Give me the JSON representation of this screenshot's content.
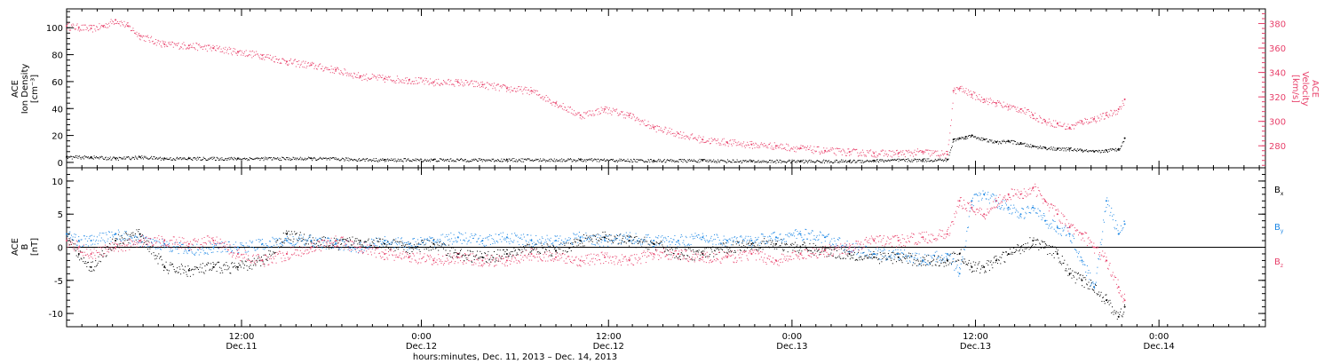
{
  "colors": {
    "black": "#000000",
    "pink": "#e8416b",
    "blue": "#1e88e5"
  },
  "chart_data": [
    {
      "type": "scatter",
      "panel": "top",
      "ylabel_left": [
        "ACE",
        "Ion Density",
        "[cm⁻³]"
      ],
      "ylabel_right": [
        "ACE",
        "Velocity",
        "[km/s]"
      ],
      "ylim_left": [
        -4,
        114
      ],
      "ylim_right": [
        262,
        392
      ],
      "yticks_left": [
        "0",
        "20",
        "40",
        "60",
        "80",
        "100"
      ],
      "yticks_left_values": [
        0,
        20,
        40,
        60,
        80,
        100
      ],
      "yticks_right": [
        "280",
        "300",
        "320",
        "340",
        "360",
        "380"
      ],
      "yticks_right_values": [
        280,
        300,
        320,
        340,
        360,
        380
      ],
      "series": [
        {
          "axis": "left",
          "color": "#000000",
          "x": [
            0,
            2,
            4,
            6,
            8,
            10,
            14,
            20,
            26,
            30,
            36,
            42,
            48,
            52,
            56,
            60,
            64,
            66,
            70,
            72,
            72.5,
            73,
            73.5,
            74,
            75,
            76,
            77,
            78,
            79,
            80,
            81,
            82,
            83,
            84,
            85,
            86,
            86.5
          ],
          "y": [
            4,
            4,
            3,
            4,
            3,
            3,
            3,
            3,
            2,
            2,
            2,
            2,
            1.5,
            1.5,
            1,
            1,
            1,
            1.5,
            2,
            2,
            17,
            18,
            19,
            20,
            17,
            15,
            16,
            14,
            12,
            11,
            10,
            10,
            9,
            8,
            9,
            10,
            18
          ]
        },
        {
          "axis": "right",
          "color": "#e8416b",
          "x": [
            0,
            1,
            2,
            3,
            4,
            5,
            6,
            8,
            10,
            12,
            14,
            16,
            18,
            20,
            22,
            24,
            26,
            28,
            30,
            32,
            34,
            36,
            38,
            40,
            42,
            44,
            46,
            48,
            50,
            52,
            54,
            56,
            58,
            60,
            62,
            64,
            66,
            68,
            70,
            72,
            72.5,
            73,
            74,
            75,
            76,
            77,
            78,
            79,
            80,
            81,
            82,
            83,
            84,
            85,
            86,
            86.5
          ],
          "y": [
            378,
            377,
            376,
            378,
            383,
            378,
            370,
            363,
            362,
            360,
            357,
            354,
            349,
            346,
            342,
            337,
            335,
            334,
            332,
            332,
            330,
            327,
            325,
            315,
            305,
            310,
            305,
            295,
            290,
            285,
            283,
            281,
            280,
            278,
            276,
            275,
            274,
            274,
            275,
            273,
            325,
            327,
            322,
            318,
            315,
            312,
            310,
            305,
            300,
            298,
            295,
            300,
            302,
            305,
            310,
            318
          ]
        }
      ]
    },
    {
      "type": "scatter",
      "panel": "bottom",
      "ylabel_left": [
        "ACE",
        "B",
        "[nT]"
      ],
      "ylim": [
        -12,
        12
      ],
      "yticks": [
        "-10",
        "-5",
        "0",
        "5",
        "10"
      ],
      "yticks_values": [
        -10,
        -5,
        0,
        5,
        10
      ],
      "zero_line": true,
      "series": [
        {
          "name": "Bx",
          "label": "B",
          "subscript": "x",
          "color": "#000000",
          "x": [
            0,
            1,
            2,
            4,
            6,
            8,
            10,
            12,
            14,
            16,
            18,
            20,
            22,
            24,
            26,
            28,
            30,
            32,
            34,
            36,
            38,
            40,
            42,
            44,
            46,
            48,
            50,
            52,
            54,
            56,
            58,
            60,
            62,
            64,
            66,
            68,
            70,
            72,
            73,
            74,
            75,
            76,
            77,
            78,
            79,
            80,
            81,
            82,
            83,
            84,
            85,
            86,
            86.5
          ],
          "y": [
            2,
            -1,
            -3,
            1,
            2,
            -3,
            -3.5,
            -3,
            -3,
            -2,
            2,
            1,
            0.5,
            1,
            0.5,
            0,
            0.5,
            -1,
            -1.5,
            -1,
            0,
            -0.5,
            1,
            1.5,
            1,
            0.5,
            -1,
            -1,
            0,
            0.5,
            0.5,
            0,
            -0.5,
            -1,
            -1.5,
            -1.5,
            -2,
            -2,
            -1,
            -3,
            -3,
            -2,
            -1,
            0,
            1,
            0,
            -1,
            -4,
            -5,
            -6,
            -8,
            -10.5,
            -9
          ]
        },
        {
          "name": "By",
          "label": "B",
          "subscript": "y",
          "color": "#1e88e5",
          "x": [
            0,
            1,
            2,
            4,
            6,
            8,
            10,
            12,
            14,
            16,
            18,
            20,
            22,
            24,
            26,
            28,
            30,
            32,
            34,
            36,
            38,
            40,
            42,
            44,
            46,
            48,
            50,
            52,
            54,
            56,
            58,
            60,
            62,
            64,
            66,
            68,
            70,
            72,
            73,
            74,
            75,
            76,
            77,
            78,
            79,
            80,
            81,
            82,
            83,
            84,
            85,
            86,
            86.5
          ],
          "y": [
            2,
            1,
            1,
            2,
            1,
            0.5,
            -0.5,
            0,
            0,
            0.5,
            1,
            1,
            0.5,
            0,
            1,
            0.5,
            1,
            1.5,
            1,
            1.5,
            1,
            1,
            1.5,
            1,
            1.5,
            1,
            1,
            1.5,
            1,
            1,
            1.5,
            2,
            1.5,
            0,
            -1,
            -1,
            -2,
            -1,
            -4,
            7,
            8,
            7,
            6,
            5,
            6,
            4,
            3,
            2,
            -2,
            -6,
            7,
            2,
            3.5
          ]
        },
        {
          "name": "Bz",
          "label": "B",
          "subscript": "z",
          "color": "#e8416b",
          "x": [
            0,
            1,
            2,
            4,
            6,
            8,
            10,
            12,
            14,
            16,
            18,
            20,
            22,
            24,
            26,
            28,
            30,
            32,
            34,
            36,
            38,
            40,
            42,
            44,
            46,
            48,
            50,
            52,
            54,
            56,
            58,
            60,
            62,
            64,
            66,
            68,
            70,
            72,
            73,
            74,
            75,
            76,
            77,
            78,
            79,
            80,
            81,
            82,
            83,
            84,
            85,
            86,
            86.5
          ],
          "y": [
            1,
            0,
            -1,
            0,
            1,
            1,
            0.5,
            1,
            -1,
            -2,
            -1,
            0,
            1,
            0,
            -1,
            -1.5,
            -2,
            -1.5,
            -2,
            -2,
            -1,
            -1.5,
            -2,
            -1.5,
            -2,
            -1,
            -1,
            -1.5,
            -1.5,
            -1,
            -2,
            -1,
            -0.5,
            0,
            1,
            1,
            1.5,
            2,
            7,
            6,
            5,
            7,
            8,
            8,
            9,
            7,
            5,
            3,
            2,
            0,
            -2,
            -6,
            -8
          ]
        }
      ]
    }
  ],
  "x_axis": {
    "range_hours": [
      0,
      98
    ],
    "ticks": [
      {
        "hours": 14.3,
        "time": "12:00",
        "day": "Dec.11"
      },
      {
        "hours": 29.0,
        "time": "0:00",
        "day": "Dec.12"
      },
      {
        "hours": 44.3,
        "time": "12:00",
        "day": "Dec.12"
      },
      {
        "hours": 59.3,
        "time": "0:00",
        "day": "Dec.13"
      },
      {
        "hours": 74.3,
        "time": "12:00",
        "day": "Dec.13"
      },
      {
        "hours": 89.3,
        "time": "0:00",
        "day": "Dec.14"
      }
    ],
    "title": "hours:minutes, Dec. 11, 2013 – Dec. 14, 2013"
  }
}
